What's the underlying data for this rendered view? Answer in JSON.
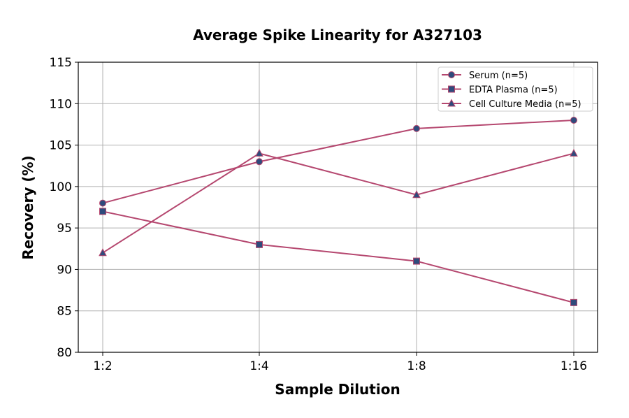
{
  "chart_data": {
    "type": "line",
    "title": "Average Spike Linearity for A327103",
    "xlabel": "Sample Dilution",
    "ylabel": "Recovery (%)",
    "categories": [
      "1:2",
      "1:4",
      "1:8",
      "1:16"
    ],
    "ylim": [
      80,
      115
    ],
    "yticks": [
      80,
      85,
      90,
      95,
      100,
      105,
      110,
      115
    ],
    "grid": true,
    "legend_position": "top-right",
    "line_color": "#b5476f",
    "marker_color": "#2f4b7c",
    "series": [
      {
        "name": "Serum (n=5)",
        "marker": "circle",
        "values": [
          98,
          103,
          107,
          108
        ]
      },
      {
        "name": "EDTA Plasma (n=5)",
        "marker": "square",
        "values": [
          97,
          93,
          91,
          86
        ]
      },
      {
        "name": "Cell Culture Media (n=5)",
        "marker": "triangle",
        "values": [
          92,
          104,
          99,
          104
        ]
      }
    ]
  }
}
